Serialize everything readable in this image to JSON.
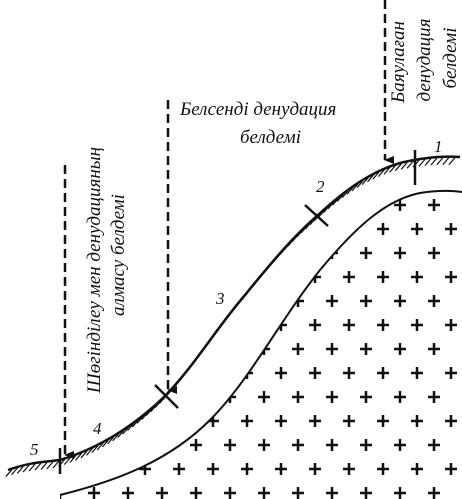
{
  "zones": {
    "active": {
      "line1": "Белсенді денудация",
      "line2": "белдемі"
    },
    "slowed": {
      "line1": "Баяулаған",
      "line2": "денудация",
      "line3": "белдемі"
    },
    "alternation": {
      "line1": "Шөгінділеу мен денудацияның",
      "line2": "алмасу белдемі"
    }
  },
  "points": [
    "1",
    "2",
    "3",
    "4",
    "5"
  ]
}
